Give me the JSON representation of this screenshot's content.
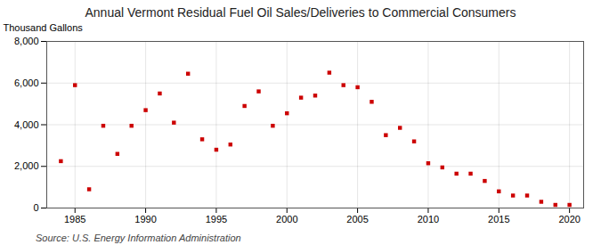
{
  "chart_data": {
    "type": "scatter",
    "title": "Annual Vermont Residual Fuel Oil Sales/Deliveries to Commercial Consumers",
    "ylabel": "Thousand Gallons",
    "source": "Source: U.S. Energy Information Administration",
    "x": [
      1984,
      1985,
      1986,
      1987,
      1988,
      1989,
      1990,
      1991,
      1992,
      1993,
      1994,
      1995,
      1996,
      1997,
      1998,
      1999,
      2000,
      2001,
      2002,
      2003,
      2004,
      2005,
      2006,
      2007,
      2008,
      2009,
      2010,
      2011,
      2012,
      2013,
      2014,
      2015,
      2016,
      2017,
      2018,
      2019,
      2020
    ],
    "values": [
      2250,
      5900,
      900,
      3950,
      2600,
      3950,
      4700,
      5500,
      4100,
      6450,
      3300,
      2800,
      3050,
      4900,
      5600,
      3950,
      4550,
      5300,
      5400,
      6500,
      5900,
      5800,
      5100,
      3500,
      3850,
      3200,
      2150,
      1950,
      1650,
      1650,
      1300,
      800,
      600,
      600,
      300,
      150,
      150
    ],
    "color": "#cc0000",
    "marker": "square",
    "xlim": [
      1983,
      2021
    ],
    "ylim": [
      0,
      8000
    ],
    "xticks": [
      1985,
      1990,
      1995,
      2000,
      2005,
      2010,
      2015,
      2020
    ],
    "yticks": [
      0,
      {
        "value": 2000,
        "label": "2,000"
      },
      {
        "value": 4000,
        "label": "4,000"
      },
      {
        "value": 6000,
        "label": "6,000"
      },
      {
        "value": 8000,
        "label": "8,000"
      }
    ],
    "grid": true
  }
}
